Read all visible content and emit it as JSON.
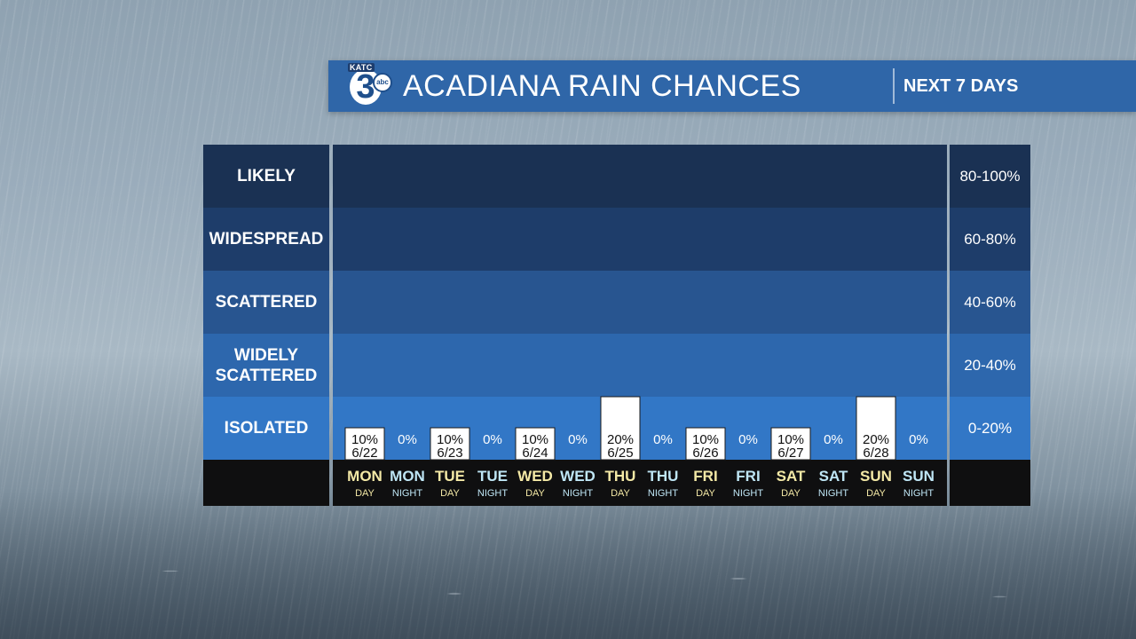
{
  "header": {
    "logo_top": "KATC",
    "logo_number": "3",
    "logo_network": "abc",
    "title": "ACADIANA RAIN CHANCES",
    "subtitle": "NEXT 7 DAYS"
  },
  "legend_left": [
    "LIKELY",
    "WIDESPREAD",
    "SCATTERED",
    "WIDELY\nSCATTERED",
    "ISOLATED"
  ],
  "legend_right": [
    "80-100%",
    "60-80%",
    "40-60%",
    "20-40%",
    "0-20%"
  ],
  "colors": {
    "day_label": "#f4e9a6",
    "night_label": "#bfe6f5",
    "bar_fill": "#ffffff",
    "header_bg": "#2f66a8"
  },
  "chart_data": {
    "type": "bar",
    "title": "ACADIANA RAIN CHANCES",
    "xlabel": "",
    "ylabel": "",
    "ylim": [
      0,
      100
    ],
    "categories": [
      {
        "day": "MON",
        "period": "DAY"
      },
      {
        "day": "MON",
        "period": "NIGHT"
      },
      {
        "day": "TUE",
        "period": "DAY"
      },
      {
        "day": "TUE",
        "period": "NIGHT"
      },
      {
        "day": "WED",
        "period": "DAY"
      },
      {
        "day": "WED",
        "period": "NIGHT"
      },
      {
        "day": "THU",
        "period": "DAY"
      },
      {
        "day": "THU",
        "period": "NIGHT"
      },
      {
        "day": "FRI",
        "period": "DAY"
      },
      {
        "day": "FRI",
        "period": "NIGHT"
      },
      {
        "day": "SAT",
        "period": "DAY"
      },
      {
        "day": "SAT",
        "period": "NIGHT"
      },
      {
        "day": "SUN",
        "period": "DAY"
      },
      {
        "day": "SUN",
        "period": "NIGHT"
      }
    ],
    "values": [
      10,
      0,
      10,
      0,
      10,
      0,
      20,
      0,
      10,
      0,
      10,
      0,
      20,
      0
    ],
    "value_labels": [
      "10%",
      "0%",
      "10%",
      "0%",
      "10%",
      "0%",
      "20%",
      "0%",
      "10%",
      "0%",
      "10%",
      "0%",
      "20%",
      "0%"
    ],
    "dates": [
      "6/22",
      "",
      "6/23",
      "",
      "6/24",
      "",
      "6/25",
      "",
      "6/26",
      "",
      "6/27",
      "",
      "6/28",
      ""
    ]
  }
}
